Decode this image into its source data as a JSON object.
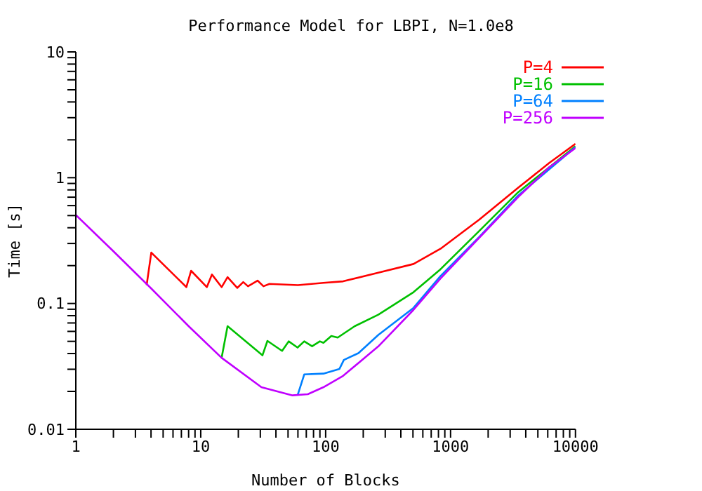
{
  "chart_data": {
    "type": "line",
    "title": "Performance Model for LBPI, N=1.0e8",
    "xlabel": "Number of Blocks",
    "ylabel": "Time [s]",
    "log": "xy",
    "grid": false,
    "legend": "top right",
    "marker": "none",
    "line_style": "solid",
    "xlim": [
      1,
      10000
    ],
    "ylim": [
      0.01,
      10
    ],
    "xticks": [
      1,
      {
        "value": 2,
        "label": null
      },
      {
        "value": 3,
        "label": null
      },
      {
        "value": 4,
        "label": null
      },
      {
        "value": 5,
        "label": null
      },
      {
        "value": 6,
        "label": null
      },
      {
        "value": 7,
        "label": null
      },
      {
        "value": 8,
        "label": null
      },
      {
        "value": 9,
        "label": null
      },
      10,
      {
        "value": 20,
        "label": null
      },
      {
        "value": 30,
        "label": null
      },
      {
        "value": 40,
        "label": null
      },
      {
        "value": 50,
        "label": null
      },
      {
        "value": 60,
        "label": null
      },
      {
        "value": 70,
        "label": null
      },
      {
        "value": 80,
        "label": null
      },
      {
        "value": 90,
        "label": null
      },
      100,
      {
        "value": 200,
        "label": null
      },
      {
        "value": 300,
        "label": null
      },
      {
        "value": 400,
        "label": null
      },
      {
        "value": 500,
        "label": null
      },
      {
        "value": 600,
        "label": null
      },
      {
        "value": 700,
        "label": null
      },
      {
        "value": 800,
        "label": null
      },
      {
        "value": 900,
        "label": null
      },
      1000,
      {
        "value": 2000,
        "label": null
      },
      {
        "value": 3000,
        "label": null
      },
      {
        "value": 4000,
        "label": null
      },
      {
        "value": 5000,
        "label": null
      },
      {
        "value": 6000,
        "label": null
      },
      {
        "value": 7000,
        "label": null
      },
      {
        "value": 8000,
        "label": null
      },
      {
        "value": 9000,
        "label": null
      },
      10000
    ],
    "yticks": [
      0.01,
      {
        "value": 0.02,
        "label": null
      },
      {
        "value": 0.03,
        "label": null
      },
      {
        "value": 0.04,
        "label": null
      },
      {
        "value": 0.05,
        "label": null
      },
      {
        "value": 0.06,
        "label": null
      },
      {
        "value": 0.07,
        "label": null
      },
      {
        "value": 0.08,
        "label": null
      },
      {
        "value": 0.09,
        "label": null
      },
      0.1,
      {
        "value": 0.2,
        "label": null
      },
      {
        "value": 0.3,
        "label": null
      },
      {
        "value": 0.4,
        "label": null
      },
      {
        "value": 0.5,
        "label": null
      },
      {
        "value": 0.6,
        "label": null
      },
      {
        "value": 0.7,
        "label": null
      },
      {
        "value": 0.8,
        "label": null
      },
      {
        "value": 0.9,
        "label": null
      },
      1,
      {
        "value": 2,
        "label": null
      },
      {
        "value": 3,
        "label": null
      },
      {
        "value": 4,
        "label": null
      },
      {
        "value": 5,
        "label": null
      },
      {
        "value": 6,
        "label": null
      },
      {
        "value": 7,
        "label": null
      },
      {
        "value": 8,
        "label": null
      },
      {
        "value": 9,
        "label": null
      },
      10
    ],
    "series": [
      {
        "name": "P=4",
        "color": "#ff0000",
        "x": [
          3.69,
          4.02,
          7.67,
          8.37,
          11.2,
          12.3,
          14.7,
          16.4,
          19.6,
          21.9,
          23.9,
          28.5,
          31.8,
          35.5,
          60,
          96,
          138,
          264,
          505,
          830,
          1700,
          3470,
          6170,
          10000
        ],
        "values": [
          0.14,
          0.254,
          0.135,
          0.182,
          0.135,
          0.17,
          0.135,
          0.162,
          0.133,
          0.148,
          0.137,
          0.152,
          0.137,
          0.143,
          0.14,
          0.146,
          0.15,
          0.176,
          0.206,
          0.272,
          0.465,
          0.83,
          1.31,
          1.86
        ]
      },
      {
        "name": "P=16",
        "color": "#00c000",
        "x": [
          14.7,
          16.4,
          31.2,
          34.2,
          44.8,
          50.6,
          59.6,
          67.4,
          77.9,
          89.9,
          96,
          111,
          125,
          171,
          264,
          505,
          830,
          1700,
          3470,
          10000
        ],
        "values": [
          0.037,
          0.066,
          0.0387,
          0.0504,
          0.042,
          0.05,
          0.0446,
          0.05,
          0.0457,
          0.05,
          0.0487,
          0.0552,
          0.0536,
          0.066,
          0.0815,
          0.123,
          0.187,
          0.378,
          0.765,
          1.78
        ]
      },
      {
        "name": "P=64",
        "color": "#0080ff",
        "x": [
          59.6,
          67.4,
          96,
          129,
          140,
          183,
          264,
          505,
          830,
          1700,
          3470,
          10000
        ],
        "values": [
          0.0186,
          0.0273,
          0.0277,
          0.0302,
          0.0356,
          0.0403,
          0.0562,
          0.0923,
          0.165,
          0.339,
          0.72,
          1.75
        ]
      },
      {
        "name": "P=256",
        "color": "#c000ff",
        "x": [
          1,
          2,
          4,
          8,
          14.7,
          30.6,
          54.3,
          72,
          96,
          138,
          264,
          505,
          830,
          1700,
          3470,
          6170,
          10000
        ],
        "values": [
          0.505,
          0.26,
          0.132,
          0.066,
          0.037,
          0.0216,
          0.0186,
          0.019,
          0.0216,
          0.0266,
          0.0456,
          0.089,
          0.158,
          0.334,
          0.7,
          1.21,
          1.72
        ]
      }
    ]
  }
}
